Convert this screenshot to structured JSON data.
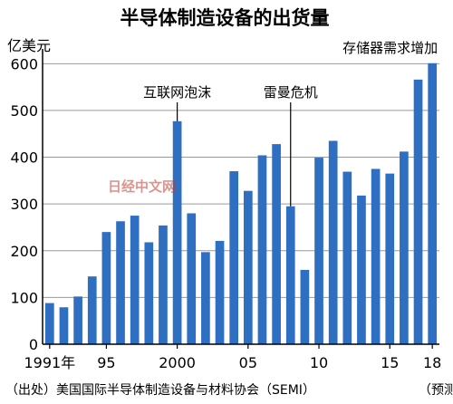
{
  "chart_data": {
    "type": "bar",
    "title": "半导体制造设备的出货量",
    "ylabel": "亿美元",
    "ylim": [
      0,
      620
    ],
    "yticks": [
      0,
      100,
      200,
      300,
      400,
      500,
      600
    ],
    "grid": true,
    "bar_color": "#2f6fc2",
    "x": [
      1991,
      1992,
      1993,
      1994,
      1995,
      1996,
      1997,
      1998,
      1999,
      2000,
      2001,
      2002,
      2003,
      2004,
      2005,
      2006,
      2007,
      2008,
      2009,
      2010,
      2011,
      2012,
      2013,
      2014,
      2015,
      2016,
      2017,
      2018
    ],
    "values": [
      88,
      79,
      102,
      145,
      240,
      263,
      275,
      218,
      254,
      477,
      280,
      197,
      221,
      370,
      328,
      404,
      428,
      295,
      159,
      399,
      435,
      369,
      318,
      375,
      365,
      412,
      566,
      601
    ],
    "xtick_labels": [
      {
        "index": 0,
        "label": "1991年"
      },
      {
        "index": 4,
        "label": "95"
      },
      {
        "index": 9,
        "label": "2000"
      },
      {
        "index": 14,
        "label": "05"
      },
      {
        "index": 19,
        "label": "10"
      },
      {
        "index": 24,
        "label": "15"
      },
      {
        "index": 27,
        "label": "18"
      }
    ],
    "annotations": [
      {
        "text": "互联网泡沫",
        "index": 9
      },
      {
        "text": "雷曼危机",
        "index": 17
      },
      {
        "text": "存储器需求增加",
        "index": 26
      }
    ],
    "footnote_left": "（出处）美国国际半导体制造设备与材料协会（SEMI）",
    "footnote_right": "（预测）"
  },
  "watermark": "日经中文网"
}
